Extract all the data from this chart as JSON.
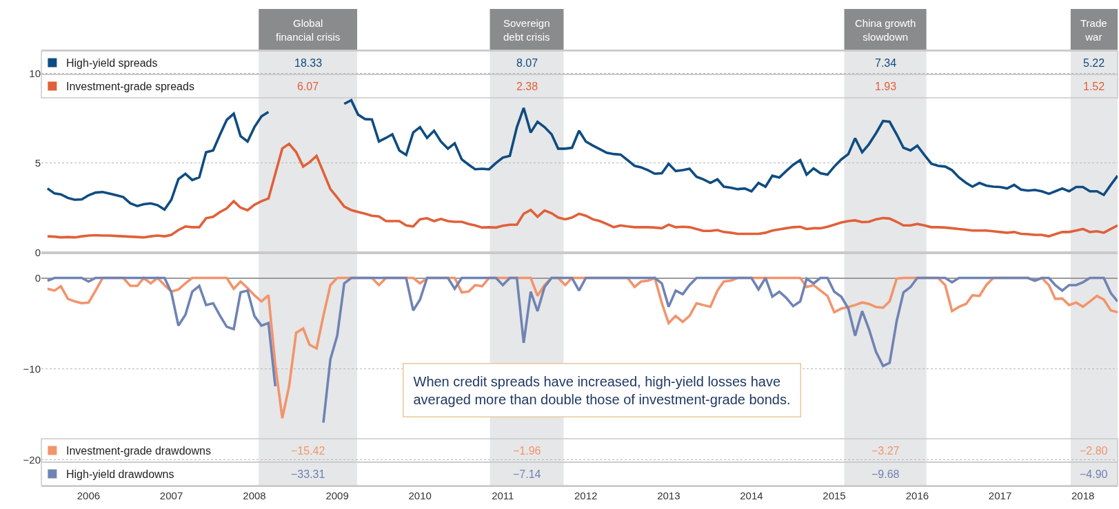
{
  "chart_data": [
    {
      "type": "line",
      "tick_labels": "y",
      "legend": "top left",
      "grid": "y",
      "x": [
        "2006-01",
        "2006-02",
        "2006-03",
        "2006-04",
        "2006-05",
        "2006-06",
        "2006-07",
        "2006-08",
        "2006-09",
        "2006-10",
        "2006-11",
        "2006-12",
        "2007-01",
        "2007-02",
        "2007-03",
        "2007-04",
        "2007-05",
        "2007-06",
        "2007-07",
        "2007-08",
        "2007-09",
        "2007-10",
        "2007-11",
        "2007-12",
        "2008-01",
        "2008-02",
        "2008-03",
        "2008-04",
        "2008-05",
        "2008-06",
        "2008-07",
        "2008-08",
        "2008-09",
        "2008-10",
        "2008-11",
        "2008-12",
        "2009-01",
        "2009-02",
        "2009-03",
        "2009-04",
        "2009-05",
        "2009-06",
        "2009-07",
        "2009-08",
        "2009-09",
        "2009-10",
        "2009-11",
        "2009-12",
        "2010-01",
        "2010-02",
        "2010-03",
        "2010-04",
        "2010-05",
        "2010-06",
        "2010-07",
        "2010-08",
        "2010-09",
        "2010-10",
        "2010-11",
        "2010-12",
        "2011-01",
        "2011-02",
        "2011-03",
        "2011-04",
        "2011-05",
        "2011-06",
        "2011-07",
        "2011-08",
        "2011-09",
        "2011-10",
        "2011-11",
        "2011-12",
        "2012-01",
        "2012-02",
        "2012-03",
        "2012-04",
        "2012-05",
        "2012-06",
        "2012-07",
        "2012-08",
        "2012-09",
        "2012-10",
        "2012-11",
        "2012-12",
        "2013-01",
        "2013-02",
        "2013-03",
        "2013-04",
        "2013-05",
        "2013-06",
        "2013-07",
        "2013-08",
        "2013-09",
        "2013-10",
        "2013-11",
        "2013-12",
        "2014-01",
        "2014-02",
        "2014-03",
        "2014-04",
        "2014-05",
        "2014-06",
        "2014-07",
        "2014-08",
        "2014-09",
        "2014-10",
        "2014-11",
        "2014-12",
        "2015-01",
        "2015-02",
        "2015-03",
        "2015-04",
        "2015-05",
        "2015-06",
        "2015-07",
        "2015-08",
        "2015-09",
        "2015-10",
        "2015-11",
        "2015-12",
        "2016-01",
        "2016-02",
        "2016-03",
        "2016-04",
        "2016-05",
        "2016-06",
        "2016-07",
        "2016-08",
        "2016-09",
        "2016-10",
        "2016-11",
        "2016-12",
        "2017-01",
        "2017-02",
        "2017-03",
        "2017-04",
        "2017-05",
        "2017-06",
        "2017-07",
        "2017-08",
        "2017-09",
        "2017-10",
        "2017-11",
        "2017-12",
        "2018-01",
        "2018-02",
        "2018-03",
        "2018-04",
        "2018-05",
        "2018-06",
        "2018-07",
        "2018-08",
        "2018-09",
        "2018-10",
        "2018-11",
        "2018-12"
      ],
      "xlim": [
        "2005-12-05",
        "2018-12-01"
      ],
      "ylim": [
        0,
        11.25
      ],
      "yticks": [
        0,
        5,
        10
      ],
      "series": [
        {
          "name": "High-yield spreads",
          "color": "#0f4c81",
          "values": [
            3.58,
            3.3,
            3.25,
            3.05,
            2.95,
            2.97,
            3.2,
            3.35,
            3.38,
            3.3,
            3.2,
            3.1,
            2.75,
            2.6,
            2.7,
            2.75,
            2.65,
            2.4,
            2.95,
            4.1,
            4.4,
            4.05,
            4.2,
            5.6,
            5.7,
            6.6,
            7.4,
            7.75,
            6.5,
            6.2,
            7.0,
            7.6,
            7.85,
            null,
            null,
            null,
            null,
            null,
            null,
            null,
            null,
            null,
            null,
            8.3,
            8.5,
            7.7,
            7.45,
            7.43,
            6.2,
            6.4,
            6.6,
            5.7,
            5.45,
            6.7,
            7.0,
            6.4,
            6.8,
            6.2,
            5.8,
            6.1,
            5.2,
            4.9,
            4.65,
            4.68,
            4.65,
            5.0,
            5.3,
            5.4,
            7.0,
            8.07,
            6.7,
            7.3,
            7.0,
            6.6,
            5.8,
            5.8,
            5.85,
            6.8,
            6.2,
            5.97,
            5.77,
            5.57,
            5.5,
            5.47,
            5.16,
            4.84,
            4.76,
            4.6,
            4.4,
            4.43,
            4.96,
            4.55,
            4.6,
            4.68,
            4.23,
            4.09,
            3.89,
            4.09,
            3.68,
            3.62,
            3.54,
            3.58,
            3.42,
            3.89,
            3.68,
            4.29,
            4.19,
            4.55,
            4.9,
            5.16,
            4.35,
            4.7,
            4.43,
            4.35,
            4.8,
            5.2,
            5.5,
            6.38,
            5.6,
            6.05,
            6.66,
            7.34,
            7.3,
            6.6,
            5.85,
            5.7,
            5.97,
            5.45,
            4.96,
            4.84,
            4.8,
            4.6,
            4.19,
            3.89,
            3.68,
            3.89,
            3.74,
            3.68,
            3.66,
            3.58,
            3.78,
            3.52,
            3.46,
            3.5,
            3.42,
            3.28,
            3.42,
            3.58,
            3.42,
            3.66,
            3.66,
            3.42,
            3.42,
            3.22,
            3.78,
            4.29
          ]
        },
        {
          "name": "Investment-grade spreads",
          "color": "#e0603a",
          "values": [
            0.91,
            0.89,
            0.85,
            0.87,
            0.85,
            0.91,
            0.95,
            0.97,
            0.95,
            0.95,
            0.93,
            0.91,
            0.89,
            0.87,
            0.85,
            0.91,
            0.95,
            0.91,
            0.99,
            1.26,
            1.46,
            1.42,
            1.42,
            1.92,
            2.0,
            2.27,
            2.47,
            2.87,
            2.51,
            2.37,
            2.67,
            2.87,
            3.02,
            4.39,
            5.81,
            6.07,
            5.61,
            4.8,
            5.04,
            5.4,
            4.49,
            3.54,
            3.08,
            2.57,
            2.37,
            2.27,
            2.17,
            2.06,
            2.02,
            1.76,
            1.76,
            1.76,
            1.52,
            1.46,
            1.86,
            1.92,
            1.76,
            1.88,
            1.76,
            1.72,
            1.72,
            1.6,
            1.52,
            1.4,
            1.42,
            1.4,
            1.5,
            1.56,
            1.56,
            2.17,
            2.38,
            2.0,
            2.35,
            2.2,
            1.96,
            1.86,
            1.96,
            2.17,
            2.06,
            1.86,
            1.76,
            1.6,
            1.42,
            1.52,
            1.46,
            1.42,
            1.42,
            1.42,
            1.4,
            1.36,
            1.56,
            1.42,
            1.44,
            1.42,
            1.32,
            1.21,
            1.21,
            1.26,
            1.15,
            1.11,
            1.05,
            1.05,
            1.05,
            1.05,
            1.11,
            1.23,
            1.3,
            1.36,
            1.42,
            1.44,
            1.32,
            1.36,
            1.36,
            1.44,
            1.56,
            1.68,
            1.76,
            1.8,
            1.7,
            1.72,
            1.86,
            1.93,
            1.9,
            1.72,
            1.52,
            1.52,
            1.6,
            1.52,
            1.42,
            1.42,
            1.4,
            1.36,
            1.32,
            1.28,
            1.23,
            1.23,
            1.23,
            1.19,
            1.15,
            1.11,
            1.15,
            1.05,
            1.03,
            0.99,
            0.99,
            0.91,
            1.03,
            1.15,
            1.15,
            1.23,
            1.32,
            1.15,
            1.19,
            1.11,
            1.32,
            1.52
          ]
        }
      ],
      "bands": [
        {
          "axis": "x",
          "from": "2008-07-20",
          "to": "2009-09-27",
          "label": "Global\nfinancial crisis",
          "color": "#e6e7e8"
        },
        {
          "axis": "x",
          "from": "2011-05-05",
          "to": "2012-03-25",
          "label": "Sovereign\ndebt crisis",
          "color": "#e6e7e8"
        },
        {
          "axis": "x",
          "from": "2015-08-14",
          "to": "2016-08-10",
          "label": "China growth\nslowdown",
          "color": "#e6e7e8"
        },
        {
          "axis": "x",
          "from": "2018-05-08",
          "to": "2018-12-01",
          "label": "Trade\nwar",
          "color": "#e6e7e8"
        }
      ],
      "annotations": [
        "18.33",
        "8.07",
        "7.34",
        "5.22",
        "6.07",
        "2.38",
        "1.93",
        "1.52"
      ]
    },
    {
      "type": "line",
      "legend": "bottom left",
      "grid": "y",
      "x": [
        "2006-01",
        "2006-02",
        "2006-03",
        "2006-04",
        "2006-05",
        "2006-06",
        "2006-07",
        "2006-08",
        "2006-09",
        "2006-10",
        "2006-11",
        "2006-12",
        "2007-01",
        "2007-02",
        "2007-03",
        "2007-04",
        "2007-05",
        "2007-06",
        "2007-07",
        "2007-08",
        "2007-09",
        "2007-10",
        "2007-11",
        "2007-12",
        "2008-01",
        "2008-02",
        "2008-03",
        "2008-04",
        "2008-05",
        "2008-06",
        "2008-07",
        "2008-08",
        "2008-09",
        "2008-10",
        "2008-11",
        "2008-12",
        "2009-01",
        "2009-02",
        "2009-03",
        "2009-04",
        "2009-05",
        "2009-06",
        "2009-07",
        "2009-08",
        "2009-09",
        "2009-10",
        "2009-11",
        "2009-12",
        "2010-01",
        "2010-02",
        "2010-03",
        "2010-04",
        "2010-05",
        "2010-06",
        "2010-07",
        "2010-08",
        "2010-09",
        "2010-10",
        "2010-11",
        "2010-12",
        "2011-01",
        "2011-02",
        "2011-03",
        "2011-04",
        "2011-05",
        "2011-06",
        "2011-07",
        "2011-08",
        "2011-09",
        "2011-10",
        "2011-11",
        "2011-12",
        "2012-01",
        "2012-02",
        "2012-03",
        "2012-04",
        "2012-05",
        "2012-06",
        "2012-07",
        "2012-08",
        "2012-09",
        "2012-10",
        "2012-11",
        "2012-12",
        "2013-01",
        "2013-02",
        "2013-03",
        "2013-04",
        "2013-05",
        "2013-06",
        "2013-07",
        "2013-08",
        "2013-09",
        "2013-10",
        "2013-11",
        "2013-12",
        "2014-01",
        "2014-02",
        "2014-03",
        "2014-04",
        "2014-05",
        "2014-06",
        "2014-07",
        "2014-08",
        "2014-09",
        "2014-10",
        "2014-11",
        "2014-12",
        "2015-01",
        "2015-02",
        "2015-03",
        "2015-04",
        "2015-05",
        "2015-06",
        "2015-07",
        "2015-08",
        "2015-09",
        "2015-10",
        "2015-11",
        "2015-12",
        "2016-01",
        "2016-02",
        "2016-03",
        "2016-04",
        "2016-05",
        "2016-06",
        "2016-07",
        "2016-08",
        "2016-09",
        "2016-10",
        "2016-11",
        "2016-12",
        "2017-01",
        "2017-02",
        "2017-03",
        "2017-04",
        "2017-05",
        "2017-06",
        "2017-07",
        "2017-08",
        "2017-09",
        "2017-10",
        "2017-11",
        "2017-12",
        "2018-01",
        "2018-02",
        "2018-03",
        "2018-04",
        "2018-05",
        "2018-06",
        "2018-07",
        "2018-08",
        "2018-09",
        "2018-10",
        "2018-11",
        "2018-12"
      ],
      "xlim": [
        "2005-12-05",
        "2018-12-01"
      ],
      "xticks": [
        {
          "value": "2006-07",
          "label": "2006"
        },
        {
          "value": "2007-07",
          "label": "2007"
        },
        {
          "value": "2008-07",
          "label": "2008"
        },
        {
          "value": "2009-07",
          "label": "2009"
        },
        {
          "value": "2010-07",
          "label": "2010"
        },
        {
          "value": "2011-07",
          "label": "2011"
        },
        {
          "value": "2012-07",
          "label": "2012"
        },
        {
          "value": "2013-07",
          "label": "2013"
        },
        {
          "value": "2014-07",
          "label": "2014"
        },
        {
          "value": "2015-07",
          "label": "2015"
        },
        {
          "value": "2016-07",
          "label": "2016"
        },
        {
          "value": "2017-07",
          "label": "2017"
        },
        {
          "value": "2018-07",
          "label": "2018"
        }
      ],
      "ylim": [
        -22.82,
        2.78
      ],
      "yticks": [
        {
          "value": -20,
          "label": "−20"
        },
        {
          "value": -10,
          "label": "−10"
        },
        0
      ],
      "series": [
        {
          "name": "Investment-grade drawdowns",
          "color": "#f2946b",
          "values": [
            -1.19,
            -1.39,
            -0.91,
            -2.3,
            -2.58,
            -2.78,
            -2.7,
            -1.39,
            0,
            0,
            0,
            0,
            -0.87,
            -0.87,
            0,
            -0.6,
            0,
            -0.79,
            -1.5,
            -1.27,
            -0.6,
            0,
            0,
            0,
            0,
            0,
            0,
            -1.19,
            -0.4,
            -1.11,
            -1.9,
            -2.58,
            -1.9,
            -9.5,
            -15.42,
            -11.9,
            -6.03,
            -5.56,
            -7.34,
            -7.74,
            -4.17,
            -0.79,
            0,
            0,
            0,
            0,
            0,
            0,
            -0.79,
            0,
            0,
            0,
            0,
            0,
            -0.6,
            0,
            0,
            0,
            0,
            0,
            -1.59,
            -1.5,
            -0.79,
            -0.91,
            0,
            0,
            0,
            0,
            0,
            0,
            0,
            -1.96,
            -0.79,
            0,
            0,
            -0.79,
            0,
            0,
            0,
            0,
            0,
            0,
            0,
            0,
            0,
            -1.0,
            -0.4,
            -0.3,
            0,
            -2.78,
            -4.96,
            -4.17,
            -4.84,
            -4.17,
            -2.78,
            -2.98,
            -3.17,
            -1.39,
            -0.4,
            -0.3,
            0,
            0,
            0,
            0,
            0,
            0,
            0,
            0,
            0,
            0,
            -1.0,
            -0.79,
            -1.39,
            -1.98,
            -3.77,
            -3.37,
            -3.2,
            -2.98,
            -2.7,
            -2.86,
            -3.2,
            -3.27,
            -2.58,
            -0.08,
            0,
            0,
            0,
            0,
            0,
            0,
            -0.79,
            -3.65,
            -3.17,
            -2.86,
            -1.9,
            -1.98,
            -0.79,
            0,
            0,
            0,
            0,
            0,
            0,
            -0.3,
            0,
            -0.79,
            -2.3,
            -2.26,
            -2.98,
            -2.7,
            -3.17,
            -2.58,
            -1.98,
            -2.38,
            -3.57,
            -3.77
          ]
        },
        {
          "name": "High-yield drawdowns",
          "color": "#6f83b4",
          "values": [
            -0.3,
            0,
            0,
            0,
            0,
            0,
            -0.4,
            0,
            0,
            0,
            0,
            0,
            0,
            0,
            0,
            0,
            0,
            0,
            -1.59,
            -5.24,
            -4.05,
            -1.51,
            -0.87,
            -2.98,
            -2.78,
            -4.17,
            -5.36,
            -5.63,
            -1.59,
            -1.39,
            -4.17,
            -5.24,
            -4.96,
            -11.9,
            null,
            null,
            null,
            null,
            null,
            null,
            -15.9,
            -8.93,
            -6.35,
            -0.6,
            0,
            0,
            0,
            0,
            0,
            0,
            0,
            0,
            0,
            -3.57,
            -2.38,
            0,
            0,
            0,
            0,
            -1.19,
            0,
            0,
            0,
            0,
            0,
            0,
            -0.79,
            0,
            0,
            -7.14,
            -1.51,
            -3.65,
            -1.0,
            0,
            0,
            0,
            0,
            -1.39,
            0,
            0,
            0,
            0,
            0,
            0,
            0,
            0,
            0,
            0,
            0,
            -0.6,
            -3.17,
            -1.39,
            -1.79,
            -0.79,
            0,
            0,
            0,
            0,
            0,
            0,
            0,
            0,
            0,
            -1.27,
            0,
            -2.06,
            -1.51,
            -2.18,
            -3.1,
            -2.58,
            -0.08,
            -0.6,
            0,
            0,
            -1.51,
            -2.06,
            -3.37,
            -6.35,
            -3.65,
            -5.63,
            -8.13,
            -9.68,
            -9.33,
            -4.76,
            -1.59,
            -1.0,
            0,
            0,
            0,
            0,
            0,
            -0.48,
            0,
            0,
            0,
            0,
            0,
            0,
            0,
            0,
            0,
            0,
            0,
            -0.3,
            0,
            0,
            -0.79,
            -1.39,
            -0.79,
            -0.79,
            -0.48,
            0,
            0,
            0,
            -1.67,
            -2.58
          ]
        }
      ],
      "bands": [
        {
          "axis": "x",
          "from": "2008-07-20",
          "to": "2009-09-27",
          "color": "#e6e7e8"
        },
        {
          "axis": "x",
          "from": "2011-05-05",
          "to": "2012-03-25",
          "color": "#e6e7e8"
        },
        {
          "axis": "x",
          "from": "2015-08-14",
          "to": "2016-08-10",
          "color": "#e6e7e8"
        },
        {
          "axis": "x",
          "from": "2018-05-08",
          "to": "2018-12-01",
          "color": "#e6e7e8"
        }
      ],
      "annotations": [
        "−15.42",
        "−1.96",
        "−3.27",
        "−2.80",
        "−33.31",
        "−7.14",
        "−9.68",
        "−4.90",
        "When credit spreads have increased, high-yield losses have\naveraged more than double those of investment-grade bonds."
      ]
    }
  ]
}
